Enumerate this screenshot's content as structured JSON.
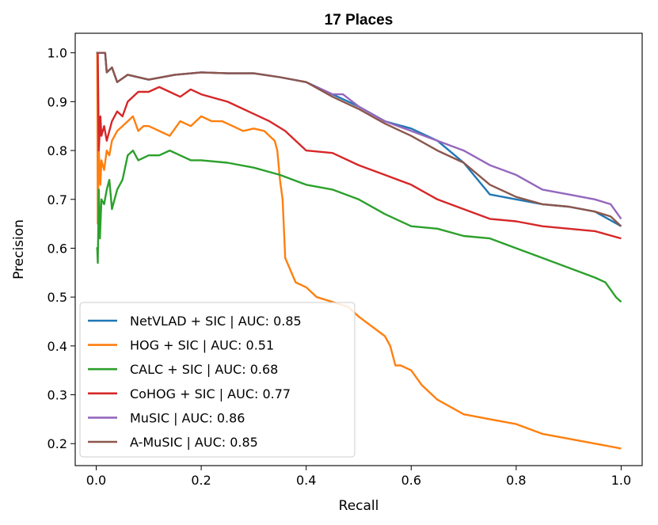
{
  "chart_data": {
    "type": "line",
    "title": "17 Places",
    "xlabel": "Recall",
    "ylabel": "Precision",
    "xlim": [
      -0.04,
      1.04
    ],
    "ylim": [
      0.155,
      1.04
    ],
    "xticks": [
      0.0,
      0.2,
      0.4,
      0.6,
      0.8,
      1.0
    ],
    "xtick_labels": [
      "0.0",
      "0.2",
      "0.4",
      "0.6",
      "0.8",
      "1.0"
    ],
    "yticks": [
      0.2,
      0.3,
      0.4,
      0.5,
      0.6,
      0.7,
      0.8,
      0.9,
      1.0
    ],
    "ytick_labels": [
      "0.2",
      "0.3",
      "0.4",
      "0.5",
      "0.6",
      "0.7",
      "0.8",
      "0.9",
      "1.0"
    ],
    "legend_position": "bottom-left",
    "series": [
      {
        "name": "NetVLAD + SIC | AUC: 0.85",
        "color": "#1f77b4",
        "x": [
          0.0,
          0.017,
          0.02,
          0.03,
          0.04,
          0.06,
          0.1,
          0.15,
          0.2,
          0.25,
          0.3,
          0.35,
          0.4,
          0.45,
          0.5,
          0.55,
          0.6,
          0.65,
          0.7,
          0.75,
          0.8,
          0.85,
          0.9,
          0.95,
          1.0
        ],
        "y": [
          1.0,
          1.0,
          0.96,
          0.97,
          0.94,
          0.955,
          0.945,
          0.955,
          0.96,
          0.958,
          0.958,
          0.95,
          0.94,
          0.915,
          0.89,
          0.86,
          0.845,
          0.82,
          0.775,
          0.71,
          0.7,
          0.69,
          0.685,
          0.675,
          0.645
        ]
      },
      {
        "name": "HOG + SIC | AUC: 0.51",
        "color": "#ff7f0e",
        "x": [
          0.0,
          0.002,
          0.003,
          0.005,
          0.008,
          0.01,
          0.015,
          0.02,
          0.025,
          0.03,
          0.04,
          0.05,
          0.06,
          0.07,
          0.08,
          0.09,
          0.1,
          0.12,
          0.14,
          0.16,
          0.18,
          0.2,
          0.22,
          0.24,
          0.26,
          0.28,
          0.3,
          0.32,
          0.33,
          0.34,
          0.345,
          0.35,
          0.355,
          0.36,
          0.38,
          0.4,
          0.42,
          0.45,
          0.48,
          0.5,
          0.55,
          0.56,
          0.57,
          0.58,
          0.6,
          0.62,
          0.65,
          0.7,
          0.75,
          0.8,
          0.85,
          0.9,
          0.95,
          1.0
        ],
        "y": [
          1.0,
          1.0,
          0.65,
          0.8,
          0.73,
          0.78,
          0.76,
          0.8,
          0.79,
          0.82,
          0.84,
          0.85,
          0.86,
          0.87,
          0.84,
          0.85,
          0.85,
          0.84,
          0.83,
          0.86,
          0.85,
          0.87,
          0.86,
          0.86,
          0.85,
          0.84,
          0.845,
          0.84,
          0.83,
          0.82,
          0.8,
          0.74,
          0.7,
          0.58,
          0.53,
          0.52,
          0.5,
          0.49,
          0.48,
          0.46,
          0.42,
          0.4,
          0.36,
          0.36,
          0.35,
          0.32,
          0.29,
          0.26,
          0.25,
          0.24,
          0.22,
          0.21,
          0.2,
          0.19
        ]
      },
      {
        "name": "CALC + SIC | AUC: 0.68",
        "color": "#2ca02c",
        "x": [
          0.0,
          0.002,
          0.003,
          0.005,
          0.007,
          0.01,
          0.015,
          0.02,
          0.025,
          0.03,
          0.04,
          0.05,
          0.06,
          0.07,
          0.08,
          0.1,
          0.12,
          0.14,
          0.16,
          0.18,
          0.2,
          0.25,
          0.3,
          0.35,
          0.4,
          0.45,
          0.5,
          0.55,
          0.6,
          0.65,
          0.7,
          0.75,
          0.8,
          0.85,
          0.9,
          0.95,
          0.97,
          0.99,
          1.0
        ],
        "y": [
          0.6,
          0.6,
          0.57,
          0.72,
          0.62,
          0.7,
          0.69,
          0.72,
          0.74,
          0.68,
          0.72,
          0.74,
          0.79,
          0.8,
          0.78,
          0.79,
          0.79,
          0.8,
          0.79,
          0.78,
          0.78,
          0.775,
          0.765,
          0.75,
          0.73,
          0.72,
          0.7,
          0.67,
          0.645,
          0.64,
          0.625,
          0.62,
          0.6,
          0.58,
          0.56,
          0.54,
          0.53,
          0.5,
          0.49
        ]
      },
      {
        "name": "CoHOG + SIC | AUC: 0.77",
        "color": "#d62728",
        "x": [
          0.0,
          0.003,
          0.005,
          0.008,
          0.01,
          0.015,
          0.02,
          0.03,
          0.04,
          0.05,
          0.06,
          0.08,
          0.1,
          0.12,
          0.14,
          0.16,
          0.18,
          0.2,
          0.25,
          0.3,
          0.33,
          0.36,
          0.38,
          0.4,
          0.45,
          0.5,
          0.55,
          0.6,
          0.65,
          0.7,
          0.75,
          0.8,
          0.85,
          0.9,
          0.95,
          1.0
        ],
        "y": [
          1.0,
          1.0,
          0.8,
          0.87,
          0.83,
          0.85,
          0.82,
          0.86,
          0.88,
          0.87,
          0.9,
          0.92,
          0.92,
          0.93,
          0.92,
          0.91,
          0.925,
          0.915,
          0.9,
          0.875,
          0.86,
          0.84,
          0.82,
          0.8,
          0.795,
          0.77,
          0.75,
          0.73,
          0.7,
          0.68,
          0.66,
          0.655,
          0.645,
          0.64,
          0.635,
          0.62
        ]
      },
      {
        "name": "MuSIC | AUC: 0.86",
        "color": "#9467bd",
        "x": [
          0.0,
          0.017,
          0.02,
          0.03,
          0.04,
          0.06,
          0.1,
          0.15,
          0.2,
          0.25,
          0.3,
          0.35,
          0.4,
          0.45,
          0.47,
          0.5,
          0.55,
          0.6,
          0.65,
          0.7,
          0.75,
          0.8,
          0.85,
          0.9,
          0.95,
          0.98,
          1.0
        ],
        "y": [
          1.0,
          1.0,
          0.96,
          0.97,
          0.94,
          0.955,
          0.945,
          0.955,
          0.96,
          0.958,
          0.958,
          0.95,
          0.94,
          0.915,
          0.915,
          0.89,
          0.86,
          0.84,
          0.82,
          0.8,
          0.77,
          0.75,
          0.72,
          0.71,
          0.7,
          0.69,
          0.66
        ]
      },
      {
        "name": "A-MuSIC | AUC: 0.85",
        "color": "#8c564b",
        "x": [
          0.0,
          0.017,
          0.02,
          0.03,
          0.04,
          0.06,
          0.1,
          0.15,
          0.2,
          0.25,
          0.3,
          0.35,
          0.4,
          0.45,
          0.5,
          0.55,
          0.6,
          0.65,
          0.7,
          0.75,
          0.8,
          0.85,
          0.9,
          0.95,
          0.98,
          1.0
        ],
        "y": [
          1.0,
          1.0,
          0.96,
          0.97,
          0.94,
          0.955,
          0.945,
          0.955,
          0.96,
          0.958,
          0.958,
          0.95,
          0.94,
          0.91,
          0.885,
          0.855,
          0.83,
          0.8,
          0.775,
          0.73,
          0.705,
          0.69,
          0.685,
          0.675,
          0.665,
          0.645
        ]
      }
    ]
  }
}
